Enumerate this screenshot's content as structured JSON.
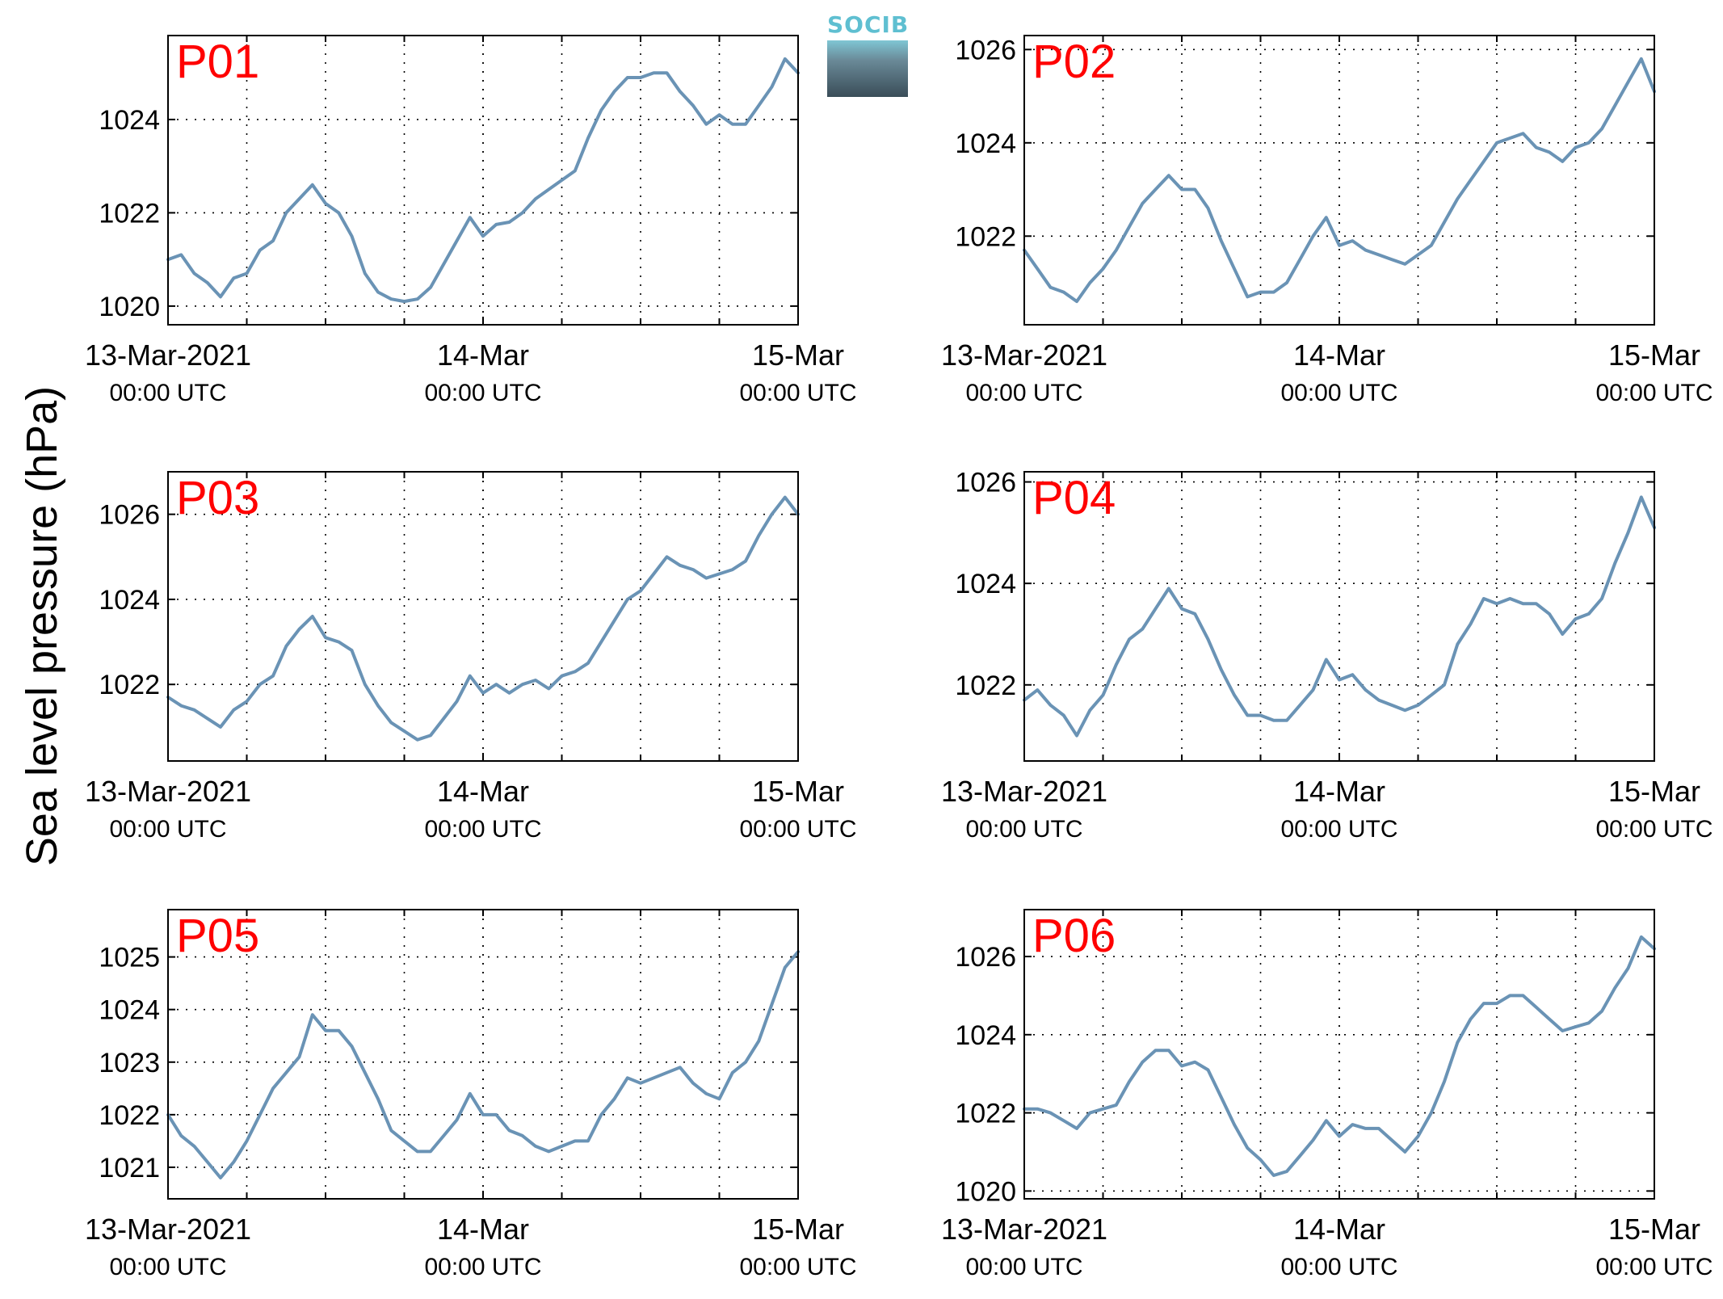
{
  "figure": {
    "ylabel": "Sea level pressure (hPa)",
    "logo_text": "SOCIB",
    "line_color": "#6a93b5",
    "panel_label_color": "#ff0000",
    "grid": "dotted"
  },
  "chart_data": [
    {
      "type": "line",
      "title": "P01",
      "xlim": [
        0,
        48
      ],
      "ylim": [
        1019.6,
        1025.8
      ],
      "yticks": [
        1020,
        1022,
        1024
      ],
      "xticks": [
        {
          "x": 0,
          "label": "13-Mar-2021",
          "sub": "00:00 UTC"
        },
        {
          "x": 24,
          "label": "14-Mar",
          "sub": "00:00 UTC"
        },
        {
          "x": 48,
          "label": "15-Mar",
          "sub": "00:00 UTC"
        }
      ],
      "series": [
        {
          "x": [
            0,
            1,
            2,
            3,
            4,
            5,
            6,
            7,
            8,
            9,
            10,
            11,
            12,
            13,
            14,
            15,
            16,
            17,
            18,
            19,
            20,
            21,
            22,
            23,
            24,
            25,
            26,
            27,
            28,
            29,
            30,
            31,
            32,
            33,
            34,
            35,
            36,
            37,
            38,
            39,
            40,
            41,
            42,
            43,
            44,
            45,
            46,
            47,
            48
          ],
          "values": [
            1021.0,
            1021.1,
            1020.7,
            1020.5,
            1020.2,
            1020.6,
            1020.7,
            1021.2,
            1021.4,
            1022.0,
            1022.3,
            1022.6,
            1022.2,
            1022.0,
            1021.5,
            1020.7,
            1020.3,
            1020.15,
            1020.1,
            1020.15,
            1020.4,
            1020.9,
            1021.4,
            1021.9,
            1021.5,
            1021.75,
            1021.8,
            1022.0,
            1022.3,
            1022.5,
            1022.7,
            1022.9,
            1023.6,
            1024.2,
            1024.6,
            1024.9,
            1024.9,
            1025.0,
            1025.0,
            1024.6,
            1024.3,
            1023.9,
            1024.1,
            1023.9,
            1023.9,
            1024.3,
            1024.7,
            1025.3,
            1025.0
          ]
        }
      ]
    },
    {
      "type": "line",
      "title": "P02",
      "xlim": [
        0,
        48
      ],
      "ylim": [
        1020.1,
        1026.3
      ],
      "yticks": [
        1022,
        1024,
        1026
      ],
      "xticks": [
        {
          "x": 0,
          "label": "13-Mar-2021",
          "sub": "00:00 UTC"
        },
        {
          "x": 24,
          "label": "14-Mar",
          "sub": "00:00 UTC"
        },
        {
          "x": 48,
          "label": "15-Mar",
          "sub": "00:00 UTC"
        }
      ],
      "series": [
        {
          "x": [
            0,
            1,
            2,
            3,
            4,
            5,
            6,
            7,
            8,
            9,
            10,
            11,
            12,
            13,
            14,
            15,
            16,
            17,
            18,
            19,
            20,
            21,
            22,
            23,
            24,
            25,
            26,
            27,
            28,
            29,
            30,
            31,
            32,
            33,
            34,
            35,
            36,
            37,
            38,
            39,
            40,
            41,
            42,
            43,
            44,
            45,
            46,
            47,
            48
          ],
          "values": [
            1021.7,
            1021.3,
            1020.9,
            1020.8,
            1020.6,
            1021.0,
            1021.3,
            1021.7,
            1022.2,
            1022.7,
            1023.0,
            1023.3,
            1023.0,
            1023.0,
            1022.6,
            1021.9,
            1021.3,
            1020.7,
            1020.8,
            1020.8,
            1021.0,
            1021.5,
            1022.0,
            1022.4,
            1021.8,
            1021.9,
            1021.7,
            1021.6,
            1021.5,
            1021.4,
            1021.6,
            1021.8,
            1022.3,
            1022.8,
            1023.2,
            1023.6,
            1024.0,
            1024.1,
            1024.2,
            1023.9,
            1023.8,
            1023.6,
            1023.9,
            1024.0,
            1024.3,
            1024.8,
            1025.3,
            1025.8,
            1025.1
          ]
        }
      ]
    },
    {
      "type": "line",
      "title": "P03",
      "xlim": [
        0,
        48
      ],
      "ylim": [
        1020.2,
        1027.0
      ],
      "yticks": [
        1022,
        1024,
        1026
      ],
      "xticks": [
        {
          "x": 0,
          "label": "13-Mar-2021",
          "sub": "00:00 UTC"
        },
        {
          "x": 24,
          "label": "14-Mar",
          "sub": "00:00 UTC"
        },
        {
          "x": 48,
          "label": "15-Mar",
          "sub": "00:00 UTC"
        }
      ],
      "series": [
        {
          "x": [
            0,
            1,
            2,
            3,
            4,
            5,
            6,
            7,
            8,
            9,
            10,
            11,
            12,
            13,
            14,
            15,
            16,
            17,
            18,
            19,
            20,
            21,
            22,
            23,
            24,
            25,
            26,
            27,
            28,
            29,
            30,
            31,
            32,
            33,
            34,
            35,
            36,
            37,
            38,
            39,
            40,
            41,
            42,
            43,
            44,
            45,
            46,
            47,
            48
          ],
          "values": [
            1021.7,
            1021.5,
            1021.4,
            1021.2,
            1021.0,
            1021.4,
            1021.6,
            1022.0,
            1022.2,
            1022.9,
            1023.3,
            1023.6,
            1023.1,
            1023.0,
            1022.8,
            1022.0,
            1021.5,
            1021.1,
            1020.9,
            1020.7,
            1020.8,
            1021.2,
            1021.6,
            1022.2,
            1021.8,
            1022.0,
            1021.8,
            1022.0,
            1022.1,
            1021.9,
            1022.2,
            1022.3,
            1022.5,
            1023.0,
            1023.5,
            1024.0,
            1024.2,
            1024.6,
            1025.0,
            1024.8,
            1024.7,
            1024.5,
            1024.6,
            1024.7,
            1024.9,
            1025.5,
            1026.0,
            1026.4,
            1026.0
          ]
        }
      ]
    },
    {
      "type": "line",
      "title": "P04",
      "xlim": [
        0,
        48
      ],
      "ylim": [
        1020.5,
        1026.2
      ],
      "yticks": [
        1022,
        1024,
        1026
      ],
      "xticks": [
        {
          "x": 0,
          "label": "13-Mar-2021",
          "sub": "00:00 UTC"
        },
        {
          "x": 24,
          "label": "14-Mar",
          "sub": "00:00 UTC"
        },
        {
          "x": 48,
          "label": "15-Mar",
          "sub": "00:00 UTC"
        }
      ],
      "series": [
        {
          "x": [
            0,
            1,
            2,
            3,
            4,
            5,
            6,
            7,
            8,
            9,
            10,
            11,
            12,
            13,
            14,
            15,
            16,
            17,
            18,
            19,
            20,
            21,
            22,
            23,
            24,
            25,
            26,
            27,
            28,
            29,
            30,
            31,
            32,
            33,
            34,
            35,
            36,
            37,
            38,
            39,
            40,
            41,
            42,
            43,
            44,
            45,
            46,
            47,
            48
          ],
          "values": [
            1021.7,
            1021.9,
            1021.6,
            1021.4,
            1021.0,
            1021.5,
            1021.8,
            1022.4,
            1022.9,
            1023.1,
            1023.5,
            1023.9,
            1023.5,
            1023.4,
            1022.9,
            1022.3,
            1021.8,
            1021.4,
            1021.4,
            1021.3,
            1021.3,
            1021.6,
            1021.9,
            1022.5,
            1022.1,
            1022.2,
            1021.9,
            1021.7,
            1021.6,
            1021.5,
            1021.6,
            1021.8,
            1022.0,
            1022.8,
            1023.2,
            1023.7,
            1023.6,
            1023.7,
            1023.6,
            1023.6,
            1023.4,
            1023.0,
            1023.3,
            1023.4,
            1023.7,
            1024.4,
            1025.0,
            1025.7,
            1025.1
          ]
        }
      ]
    },
    {
      "type": "line",
      "title": "P05",
      "xlim": [
        0,
        48
      ],
      "ylim": [
        1020.4,
        1025.9
      ],
      "yticks": [
        1021,
        1022,
        1023,
        1024,
        1025
      ],
      "xticks": [
        {
          "x": 0,
          "label": "13-Mar-2021",
          "sub": "00:00 UTC"
        },
        {
          "x": 24,
          "label": "14-Mar",
          "sub": "00:00 UTC"
        },
        {
          "x": 48,
          "label": "15-Mar",
          "sub": "00:00 UTC"
        }
      ],
      "series": [
        {
          "x": [
            0,
            1,
            2,
            3,
            4,
            5,
            6,
            7,
            8,
            9,
            10,
            11,
            12,
            13,
            14,
            15,
            16,
            17,
            18,
            19,
            20,
            21,
            22,
            23,
            24,
            25,
            26,
            27,
            28,
            29,
            30,
            31,
            32,
            33,
            34,
            35,
            36,
            37,
            38,
            39,
            40,
            41,
            42,
            43,
            44,
            45,
            46,
            47,
            48
          ],
          "values": [
            1022.0,
            1021.6,
            1021.4,
            1021.1,
            1020.8,
            1021.1,
            1021.5,
            1022.0,
            1022.5,
            1022.8,
            1023.1,
            1023.9,
            1023.6,
            1023.6,
            1023.3,
            1022.8,
            1022.3,
            1021.7,
            1021.5,
            1021.3,
            1021.3,
            1021.6,
            1021.9,
            1022.4,
            1022.0,
            1022.0,
            1021.7,
            1021.6,
            1021.4,
            1021.3,
            1021.4,
            1021.5,
            1021.5,
            1022.0,
            1022.3,
            1022.7,
            1022.6,
            1022.7,
            1022.8,
            1022.9,
            1022.6,
            1022.4,
            1022.3,
            1022.8,
            1023.0,
            1023.4,
            1024.1,
            1024.8,
            1025.1
          ]
        }
      ]
    },
    {
      "type": "line",
      "title": "P06",
      "xlim": [
        0,
        48
      ],
      "ylim": [
        1019.8,
        1027.2
      ],
      "yticks": [
        1020,
        1022,
        1024,
        1026
      ],
      "xticks": [
        {
          "x": 0,
          "label": "13-Mar-2021",
          "sub": "00:00 UTC"
        },
        {
          "x": 24,
          "label": "14-Mar",
          "sub": "00:00 UTC"
        },
        {
          "x": 48,
          "label": "15-Mar",
          "sub": "00:00 UTC"
        }
      ],
      "series": [
        {
          "x": [
            0,
            1,
            2,
            3,
            4,
            5,
            6,
            7,
            8,
            9,
            10,
            11,
            12,
            13,
            14,
            15,
            16,
            17,
            18,
            19,
            20,
            21,
            22,
            23,
            24,
            25,
            26,
            27,
            28,
            29,
            30,
            31,
            32,
            33,
            34,
            35,
            36,
            37,
            38,
            39,
            40,
            41,
            42,
            43,
            44,
            45,
            46,
            47,
            48
          ],
          "values": [
            1022.1,
            1022.1,
            1022.0,
            1021.8,
            1021.6,
            1022.0,
            1022.1,
            1022.2,
            1022.8,
            1023.3,
            1023.6,
            1023.6,
            1023.2,
            1023.3,
            1023.1,
            1022.4,
            1021.7,
            1021.1,
            1020.8,
            1020.4,
            1020.5,
            1020.9,
            1021.3,
            1021.8,
            1021.4,
            1021.7,
            1021.6,
            1021.6,
            1021.3,
            1021.0,
            1021.4,
            1022.0,
            1022.8,
            1023.8,
            1024.4,
            1024.8,
            1024.8,
            1025.0,
            1025.0,
            1024.7,
            1024.4,
            1024.1,
            1024.2,
            1024.3,
            1024.6,
            1025.2,
            1025.7,
            1026.5,
            1026.2
          ]
        }
      ]
    }
  ]
}
